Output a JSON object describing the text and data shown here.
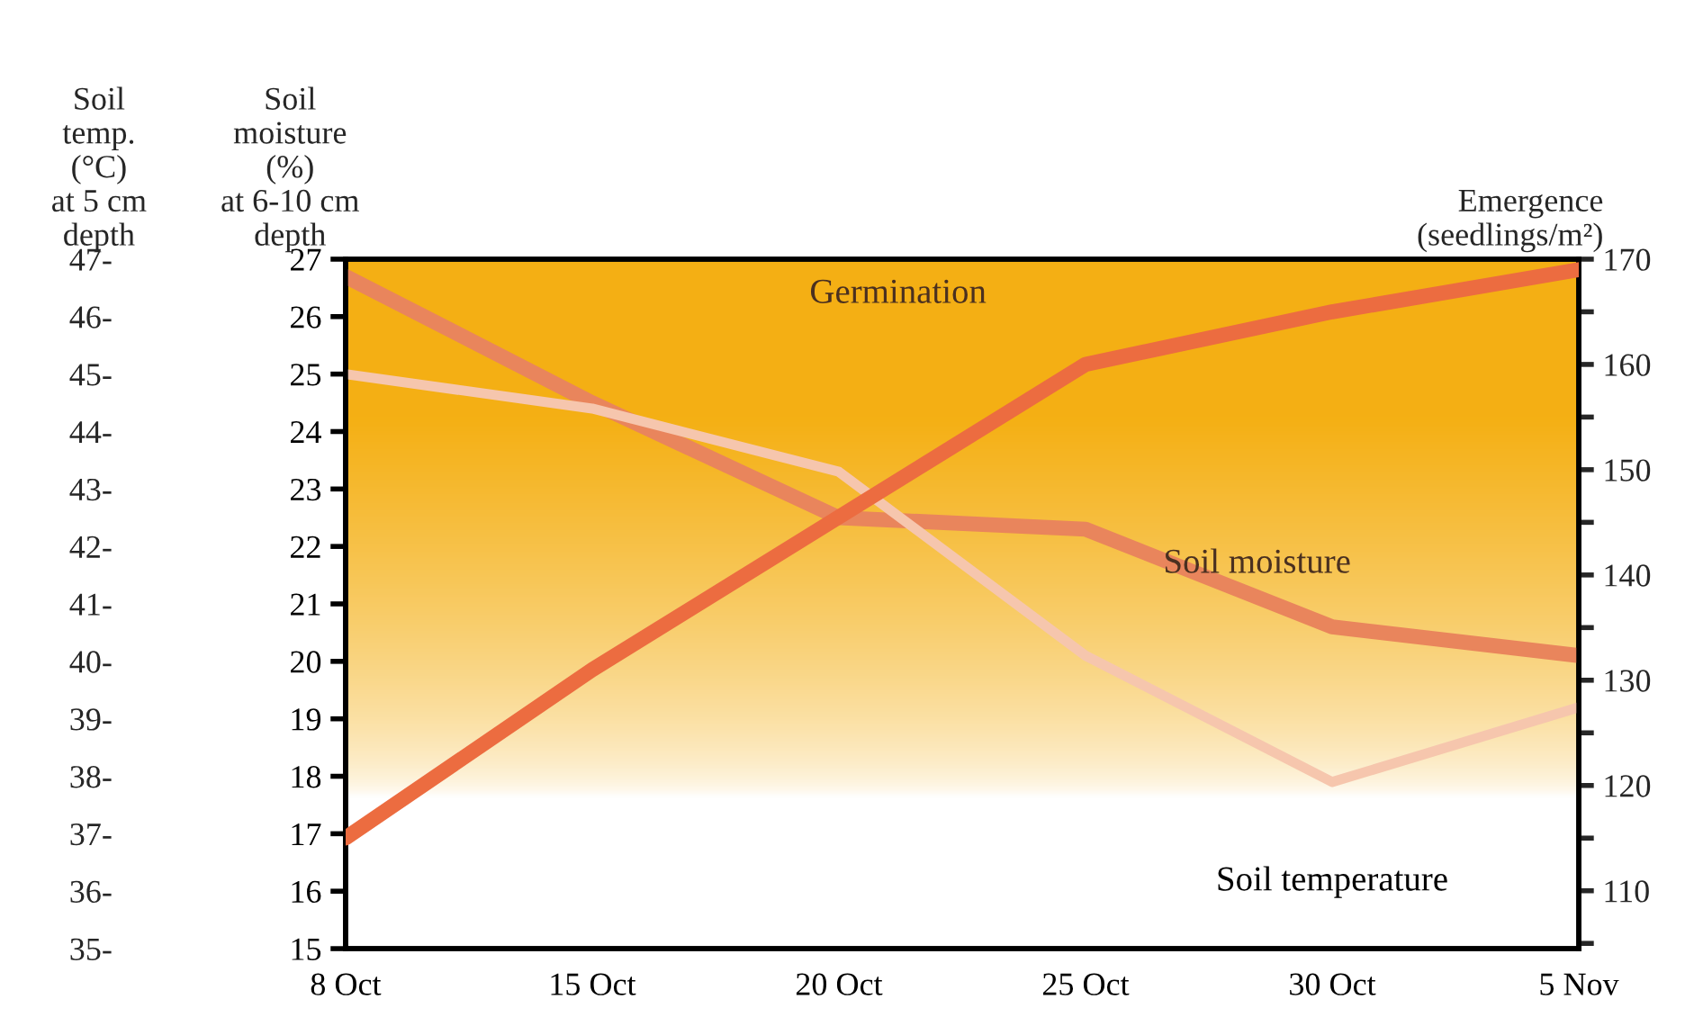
{
  "chart_data": {
    "type": "line",
    "categories": [
      "8 Oct",
      "15 Oct",
      "20 Oct",
      "25 Oct",
      "30 Oct",
      "5 Nov"
    ],
    "ylabel": "Soil\nmoisture\n(%)\nat 6-10 cm\ndepth",
    "y2label": "Emergence\n(seedlings/m²)",
    "y3label": "Soil\ntemp.\n(°C)\nat 5 cm\ndepth",
    "ylim": [
      15,
      27
    ],
    "yticks": [
      15,
      16,
      17,
      18,
      19,
      20,
      21,
      22,
      23,
      24,
      25,
      26,
      27
    ],
    "y2lim": [
      104.5,
      170
    ],
    "y2ticks": [
      {
        "value": 105,
        "label": null
      },
      110,
      {
        "value": 115,
        "label": null
      },
      120,
      {
        "value": 125,
        "label": null
      },
      130,
      {
        "value": 135,
        "label": null
      },
      140,
      {
        "value": 145,
        "label": null
      },
      150,
      {
        "value": 155,
        "label": null
      },
      160,
      {
        "value": 165,
        "label": null
      },
      170
    ],
    "y3lim": [
      35,
      47
    ],
    "y3ticks": [
      {
        "value": 35,
        "label": "35-"
      },
      {
        "value": 36,
        "label": "36-"
      },
      {
        "value": 37,
        "label": "37-"
      },
      {
        "value": 38,
        "label": "38-"
      },
      {
        "value": 39,
        "label": "39-"
      },
      {
        "value": 40,
        "label": "40-"
      },
      {
        "value": 41,
        "label": "41-"
      },
      {
        "value": 42,
        "label": "42-"
      },
      {
        "value": 43,
        "label": "43-"
      },
      {
        "value": 44,
        "label": "44-"
      },
      {
        "value": 45,
        "label": "45-"
      },
      {
        "value": 46,
        "label": "46-"
      },
      {
        "value": 47,
        "label": "47-"
      }
    ],
    "series": [
      {
        "name": "Soil temperature",
        "color": "#f6c6ad",
        "axis": "y3",
        "values": [
          45.0,
          44.4,
          43.3,
          40.1,
          37.9,
          39.2
        ]
      },
      {
        "name": "Soil moisture",
        "color": "#e9855c",
        "axis": "y",
        "values": [
          26.7,
          24.5,
          22.5,
          22.3,
          20.6,
          20.1
        ]
      },
      {
        "name": "Germination",
        "color": "#ec6c40",
        "axis": "y2",
        "values": [
          115,
          131,
          145.5,
          160,
          165,
          169
        ]
      }
    ],
    "grid": false,
    "legend": false,
    "marker": "none",
    "line_style": "solid"
  }
}
